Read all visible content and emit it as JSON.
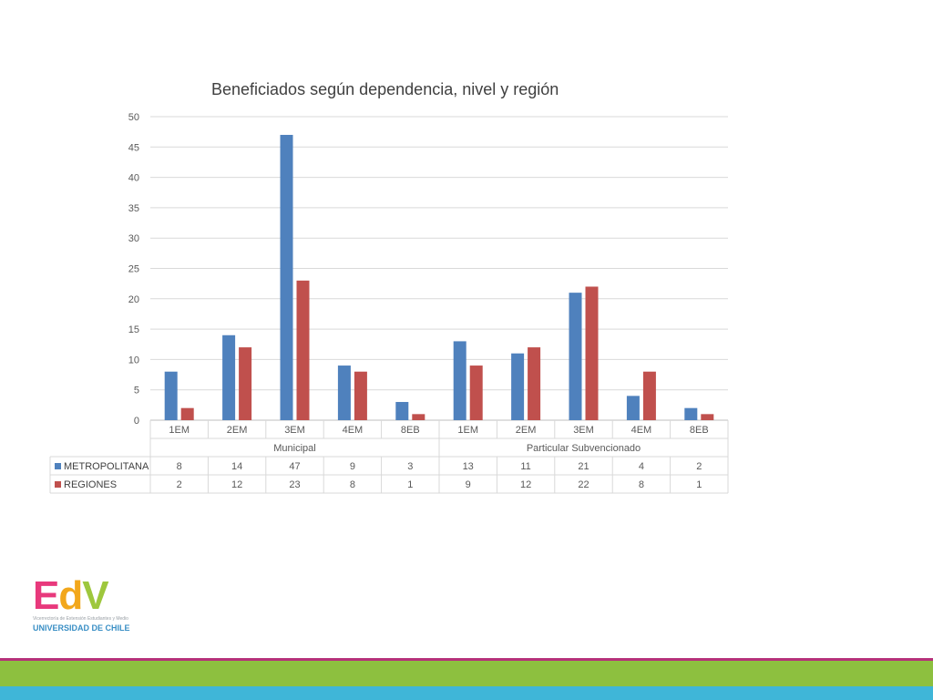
{
  "chart_data": {
    "type": "bar",
    "title": "Beneficiados según dependencia, nivel y región",
    "groups": [
      {
        "label": "Municipal",
        "categories": [
          "1EM",
          "2EM",
          "3EM",
          "4EM",
          "8EB"
        ]
      },
      {
        "label": "Particular Subvencionado",
        "categories": [
          "1EM",
          "2EM",
          "3EM",
          "4EM",
          "8EB"
        ]
      }
    ],
    "categories": [
      "1EM",
      "2EM",
      "3EM",
      "4EM",
      "8EB",
      "1EM",
      "2EM",
      "3EM",
      "4EM",
      "8EB"
    ],
    "series": [
      {
        "name": "METROPOLITANA",
        "color": "#4f81bd",
        "values": [
          8,
          14,
          47,
          9,
          3,
          13,
          11,
          21,
          4,
          2
        ]
      },
      {
        "name": "REGIONES",
        "color": "#c0504d",
        "values": [
          2,
          12,
          23,
          8,
          1,
          9,
          12,
          22,
          8,
          1
        ]
      }
    ],
    "ylim": [
      0,
      50
    ],
    "yticks": [
      0,
      5,
      10,
      15,
      20,
      25,
      30,
      35,
      40,
      45,
      50
    ],
    "grid": true,
    "data_table": true
  },
  "logo": {
    "letters": [
      "E",
      "d",
      "V"
    ],
    "subtitle": "Vicerrectoría de Extensión Estudiantes y Medio",
    "institution": "UNIVERSIDAD DE CHILE"
  },
  "colors": {
    "band_magenta": "#b6317a",
    "band_green": "#8dc03f",
    "band_blue": "#3fb6d8",
    "grid": "#d9d9d9",
    "axis": "#bfbfbf"
  }
}
